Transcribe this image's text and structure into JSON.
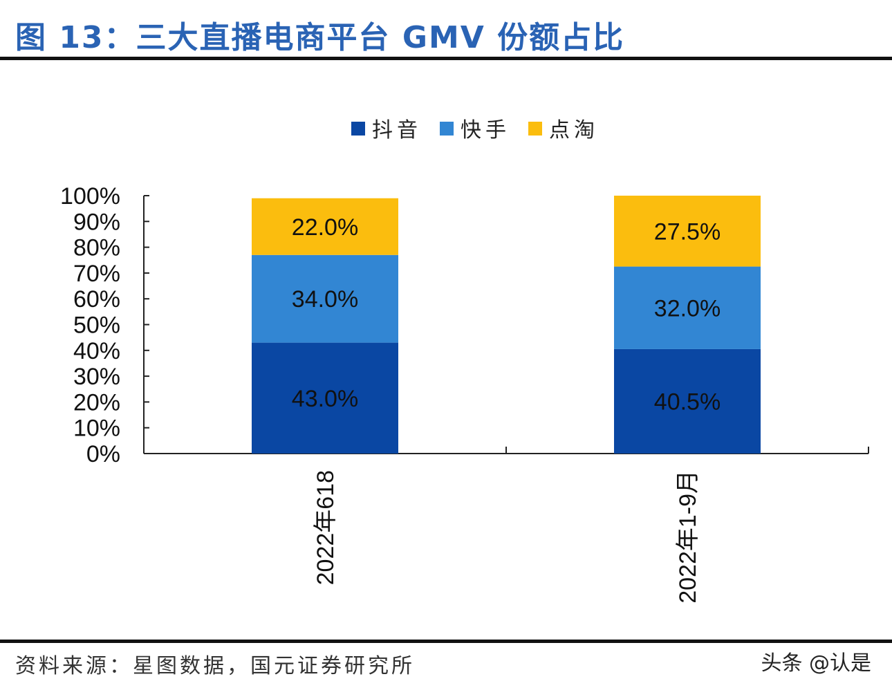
{
  "title": "图 13：三大直播电商平台 GMV 份额占比",
  "source": "资料来源：星图数据，国元证券研究所",
  "watermark": "头条 @认是",
  "chart_data": {
    "type": "bar",
    "stacked": true,
    "categories": [
      "2022年618",
      "2022年1-9月"
    ],
    "series": [
      {
        "name": "抖音",
        "color": "#0a47a3",
        "values": [
          43.0,
          40.5
        ],
        "labels": [
          "43.0%",
          "40.5%"
        ]
      },
      {
        "name": "快手",
        "color": "#3286d3",
        "values": [
          34.0,
          32.0
        ],
        "labels": [
          "34.0%",
          "32.0%"
        ]
      },
      {
        "name": "点淘",
        "color": "#fbbd0e",
        "values": [
          22.0,
          27.5
        ],
        "labels": [
          "22.0%",
          "27.5%"
        ]
      }
    ],
    "ylim": [
      0,
      100
    ],
    "yticks": [
      "0%",
      "10%",
      "20%",
      "30%",
      "40%",
      "50%",
      "60%",
      "70%",
      "80%",
      "90%",
      "100%"
    ],
    "legend": "top",
    "grid": false
  }
}
